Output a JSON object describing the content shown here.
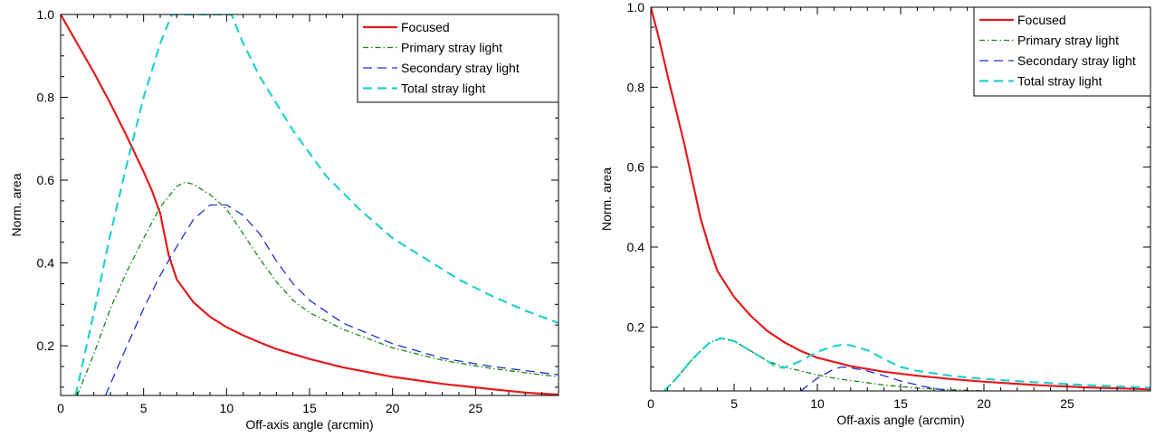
{
  "chart_data": [
    {
      "type": "line",
      "title": "",
      "xlabel": "Off-axis angle (arcmin)",
      "ylabel": "Norm. area",
      "xlim": [
        0,
        30
      ],
      "ylim": [
        0.08,
        1.0
      ],
      "xticks": [
        0,
        5,
        10,
        15,
        20,
        25
      ],
      "yticks": [
        0.2,
        0.4,
        0.6,
        0.8,
        1.0
      ],
      "grid": false,
      "legend_position": "top-right",
      "series": [
        {
          "name": "Focused",
          "color": "#e41a1c",
          "dash": "solid",
          "x": [
            0,
            1,
            2,
            3,
            4,
            5,
            5.5,
            6,
            6.5,
            7,
            8,
            9,
            10,
            11,
            12,
            13,
            15,
            17,
            20,
            23,
            26,
            28,
            30
          ],
          "y": [
            1.0,
            0.93,
            0.86,
            0.785,
            0.705,
            0.62,
            0.575,
            0.52,
            0.42,
            0.36,
            0.305,
            0.27,
            0.245,
            0.225,
            0.208,
            0.192,
            0.168,
            0.148,
            0.125,
            0.108,
            0.095,
            0.087,
            0.082
          ]
        },
        {
          "name": "Primary stray light",
          "color": "#118811",
          "dash": "dashdot",
          "x": [
            1,
            2,
            3,
            4,
            5,
            6,
            7,
            7.5,
            8,
            9,
            10,
            11,
            12,
            13,
            14,
            15,
            17,
            20,
            23,
            26,
            30
          ],
          "y": [
            0.08,
            0.18,
            0.29,
            0.38,
            0.46,
            0.535,
            0.585,
            0.595,
            0.59,
            0.565,
            0.53,
            0.47,
            0.41,
            0.355,
            0.31,
            0.28,
            0.24,
            0.195,
            0.165,
            0.145,
            0.125
          ]
        },
        {
          "name": "Secondary stray light",
          "color": "#1f2fd0",
          "dash": "dashed",
          "x": [
            2.7,
            4,
            5,
            6,
            7,
            8,
            9,
            10,
            11,
            12,
            13,
            14,
            15,
            17,
            20,
            23,
            26,
            30
          ],
          "y": [
            0.08,
            0.2,
            0.29,
            0.37,
            0.44,
            0.505,
            0.54,
            0.54,
            0.515,
            0.47,
            0.405,
            0.35,
            0.31,
            0.255,
            0.205,
            0.17,
            0.15,
            0.13
          ]
        },
        {
          "name": "Total stray light",
          "color": "#22d0d0",
          "dash": "dashed",
          "x": [
            0.9,
            2,
            3,
            4,
            5,
            6,
            6.7,
            10.3,
            11,
            12,
            14,
            16,
            18,
            20,
            22,
            24,
            26,
            28,
            30
          ],
          "y": [
            0.08,
            0.28,
            0.47,
            0.64,
            0.8,
            0.93,
            1.0,
            1.0,
            0.93,
            0.85,
            0.72,
            0.61,
            0.53,
            0.46,
            0.41,
            0.36,
            0.32,
            0.285,
            0.255
          ]
        }
      ]
    },
    {
      "type": "line",
      "title": "",
      "xlabel": "Off-axis angle (arcmin)",
      "ylabel": "Norm. area",
      "xlim": [
        0,
        30
      ],
      "ylim": [
        0.04,
        1.0
      ],
      "xticks": [
        0,
        5,
        10,
        15,
        20,
        25
      ],
      "yticks": [
        0.2,
        0.4,
        0.6,
        0.8,
        1.0
      ],
      "grid": false,
      "legend_position": "top-right",
      "series": [
        {
          "name": "Focused",
          "color": "#e41a1c",
          "dash": "solid",
          "x": [
            0,
            0.5,
            1,
            2,
            3,
            3.5,
            4,
            5,
            6,
            7,
            8,
            9,
            10,
            12,
            14,
            16,
            18,
            20,
            23,
            26,
            30
          ],
          "y": [
            1.0,
            0.92,
            0.83,
            0.66,
            0.47,
            0.4,
            0.34,
            0.275,
            0.228,
            0.19,
            0.162,
            0.14,
            0.123,
            0.102,
            0.088,
            0.078,
            0.07,
            0.063,
            0.055,
            0.049,
            0.044
          ]
        },
        {
          "name": "Primary stray light",
          "color": "#118811",
          "dash": "dashdot",
          "x": [
            0.8,
            1.5,
            2.5,
            3.5,
            4.2,
            5,
            6,
            7,
            8,
            9,
            10,
            11,
            12,
            14,
            16,
            18,
            20
          ],
          "y": [
            0.04,
            0.07,
            0.12,
            0.16,
            0.172,
            0.165,
            0.14,
            0.115,
            0.1,
            0.09,
            0.08,
            0.072,
            0.066,
            0.055,
            0.047,
            0.043,
            0.04
          ]
        },
        {
          "name": "Secondary stray light",
          "color": "#1f2fd0",
          "dash": "dashed",
          "x": [
            9.0,
            10,
            11,
            11.5,
            12,
            13,
            14,
            15,
            16,
            17,
            18
          ],
          "y": [
            0.04,
            0.072,
            0.095,
            0.1,
            0.098,
            0.09,
            0.078,
            0.065,
            0.055,
            0.046,
            0.04
          ]
        },
        {
          "name": "Total stray light",
          "color": "#22d0d0",
          "dash": "dashed",
          "x": [
            0.8,
            1.5,
            2.5,
            3.5,
            4.2,
            5,
            6,
            7,
            7.5,
            8,
            9,
            10,
            11,
            11.5,
            12,
            13,
            14,
            15,
            16,
            18,
            20,
            23,
            26,
            30
          ],
          "y": [
            0.04,
            0.07,
            0.12,
            0.16,
            0.172,
            0.165,
            0.14,
            0.115,
            0.1,
            0.098,
            0.115,
            0.138,
            0.152,
            0.156,
            0.154,
            0.142,
            0.12,
            0.1,
            0.09,
            0.078,
            0.07,
            0.062,
            0.055,
            0.048
          ]
        }
      ]
    }
  ]
}
